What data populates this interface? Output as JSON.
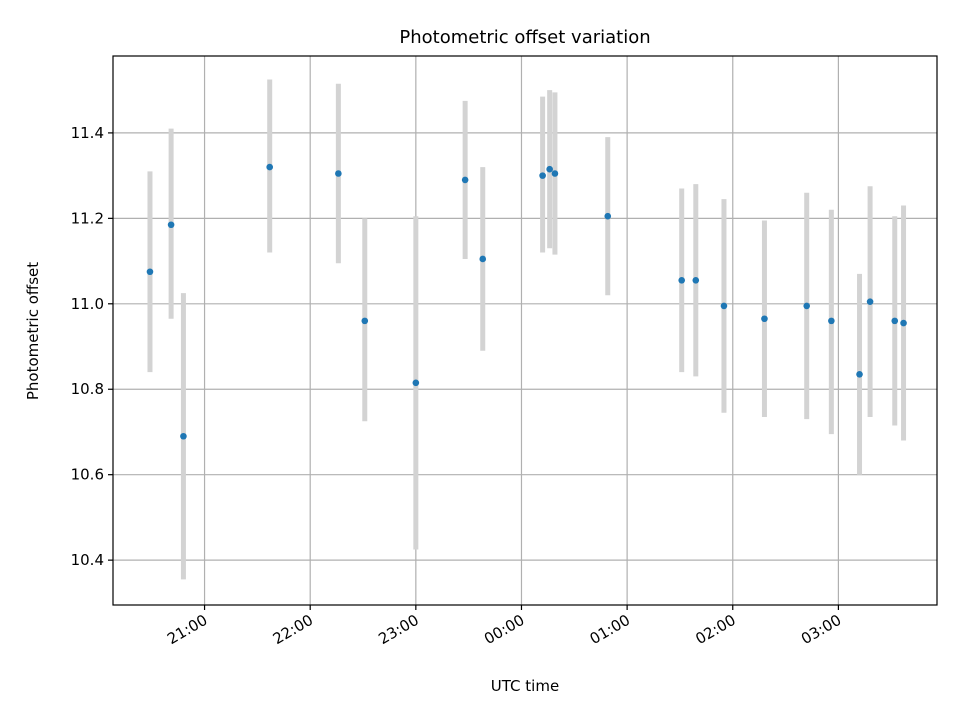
{
  "chart_data": {
    "type": "scatter",
    "title": "Photometric offset variation",
    "xlabel": "UTC time",
    "ylabel": "Photometric offset",
    "x_unit": "UTC time",
    "xlim": [
      "20:08",
      "03:56"
    ],
    "ylim": [
      10.295,
      11.58
    ],
    "x_ticks": [
      "21:00",
      "22:00",
      "23:00",
      "00:00",
      "01:00",
      "02:00",
      "03:00"
    ],
    "y_ticks": [
      10.4,
      10.6,
      10.8,
      11.0,
      11.2,
      11.4
    ],
    "y_tick_labels": [
      "10.4",
      "10.6",
      "10.8",
      "11.0",
      "11.2",
      "11.4"
    ],
    "grid": true,
    "marker_color": "#1f77b4",
    "errorbar_color": "#d3d3d3",
    "series": [
      {
        "points": [
          {
            "x": "20:29",
            "y": 11.075,
            "yerr": [
              10.84,
              11.31
            ]
          },
          {
            "x": "20:41",
            "y": 11.185,
            "yerr": [
              10.965,
              11.41
            ]
          },
          {
            "x": "20:48",
            "y": 10.69,
            "yerr": [
              10.355,
              11.025
            ]
          },
          {
            "x": "21:37",
            "y": 11.32,
            "yerr": [
              11.12,
              11.525
            ]
          },
          {
            "x": "22:16",
            "y": 11.305,
            "yerr": [
              11.095,
              11.515
            ]
          },
          {
            "x": "22:31",
            "y": 10.96,
            "yerr": [
              10.725,
              11.2
            ]
          },
          {
            "x": "23:00",
            "y": 10.815,
            "yerr": [
              10.425,
              11.205
            ]
          },
          {
            "x": "23:28",
            "y": 11.29,
            "yerr": [
              11.105,
              11.475
            ]
          },
          {
            "x": "23:38",
            "y": 11.105,
            "yerr": [
              10.89,
              11.32
            ]
          },
          {
            "x": "00:12",
            "y": 11.3,
            "yerr": [
              11.12,
              11.485
            ]
          },
          {
            "x": "00:16",
            "y": 11.315,
            "yerr": [
              11.13,
              11.5
            ]
          },
          {
            "x": "00:19",
            "y": 11.305,
            "yerr": [
              11.115,
              11.495
            ]
          },
          {
            "x": "00:49",
            "y": 11.205,
            "yerr": [
              11.02,
              11.39
            ]
          },
          {
            "x": "01:31",
            "y": 11.055,
            "yerr": [
              10.84,
              11.27
            ]
          },
          {
            "x": "01:39",
            "y": 11.055,
            "yerr": [
              10.83,
              11.28
            ]
          },
          {
            "x": "01:55",
            "y": 10.995,
            "yerr": [
              10.745,
              11.245
            ]
          },
          {
            "x": "02:18",
            "y": 10.965,
            "yerr": [
              10.735,
              11.195
            ]
          },
          {
            "x": "02:42",
            "y": 10.995,
            "yerr": [
              10.73,
              11.26
            ]
          },
          {
            "x": "02:56",
            "y": 10.96,
            "yerr": [
              10.695,
              11.22
            ]
          },
          {
            "x": "03:12",
            "y": 10.835,
            "yerr": [
              10.6,
              11.07
            ]
          },
          {
            "x": "03:18",
            "y": 11.005,
            "yerr": [
              10.735,
              11.275
            ]
          },
          {
            "x": "03:32",
            "y": 10.96,
            "yerr": [
              10.715,
              11.205
            ]
          },
          {
            "x": "03:37",
            "y": 10.955,
            "yerr": [
              10.68,
              11.23
            ]
          }
        ]
      }
    ]
  }
}
